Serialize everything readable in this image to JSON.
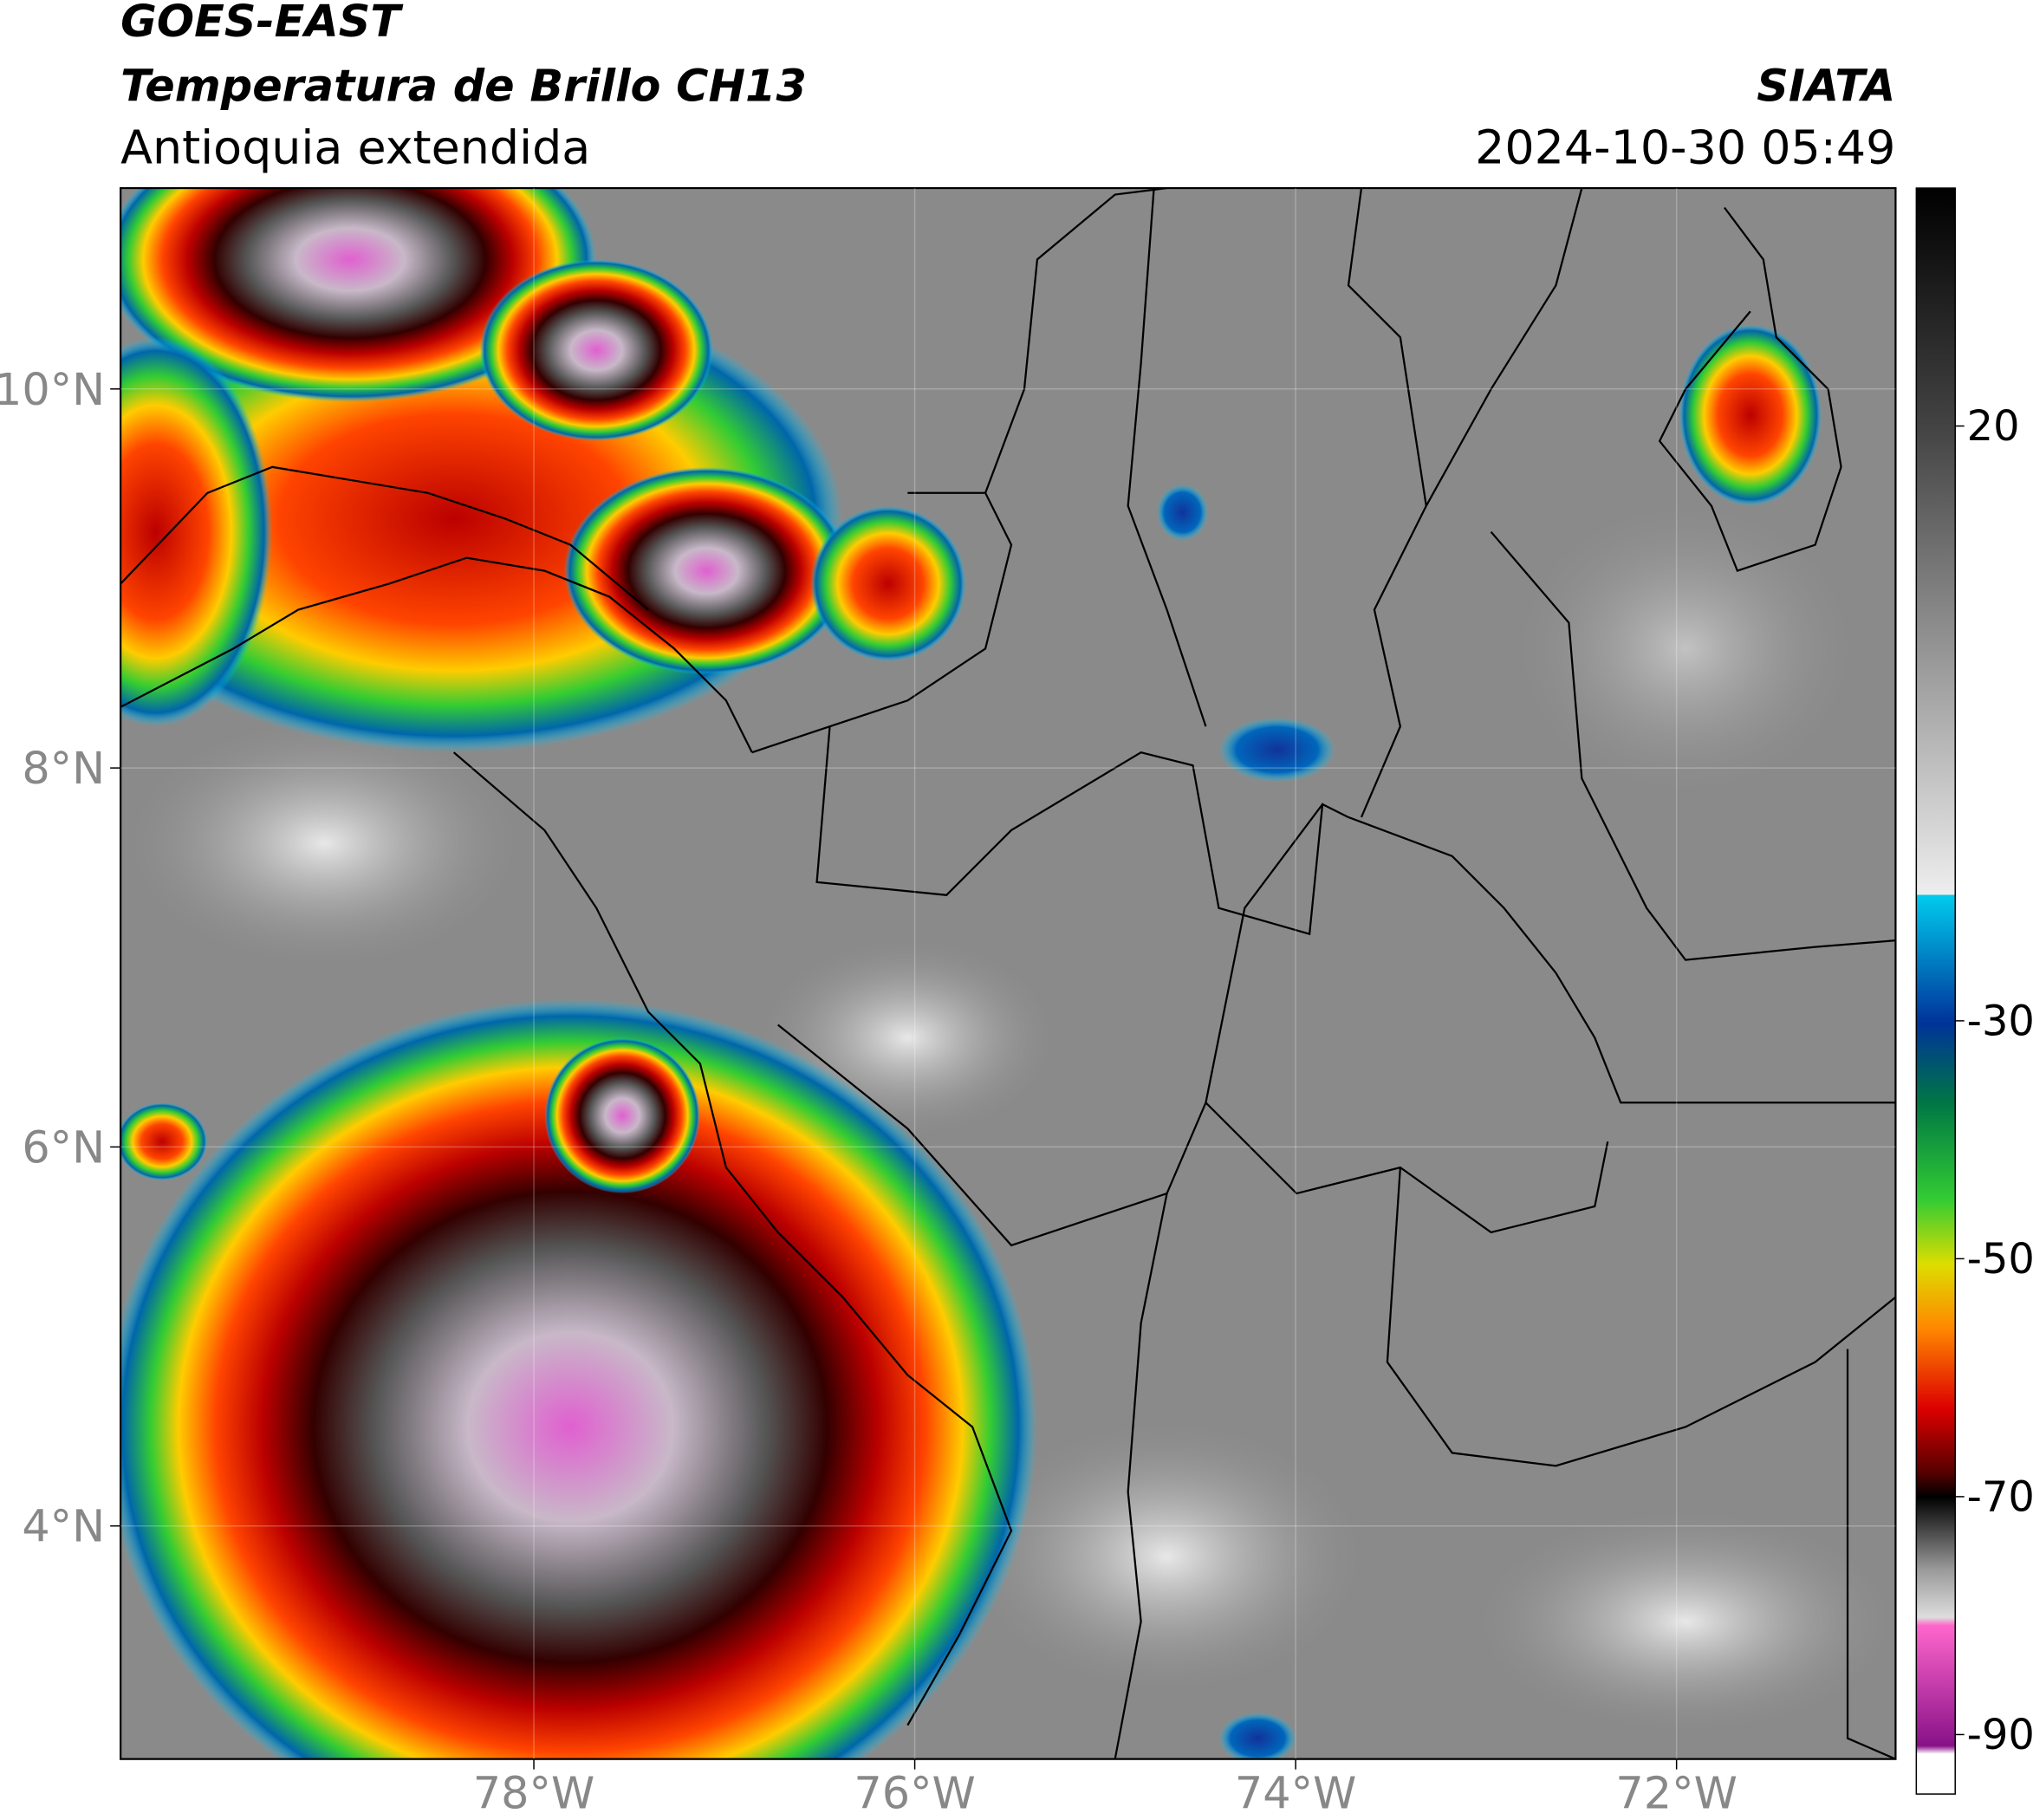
{
  "header": {
    "line1": "GOES-EAST",
    "line2": "Temperatura de Brillo CH13",
    "line3": "Antioquia extendida",
    "source": "SIATA",
    "datetime": "2024-10-30 05:49"
  },
  "map": {
    "xlim": [
      -80.17,
      -70.85
    ],
    "ylim": [
      2.77,
      11.06
    ],
    "xticks": [
      {
        "value": -78,
        "label": "78°W"
      },
      {
        "value": -76,
        "label": "76°W"
      },
      {
        "value": -74,
        "label": "74°W"
      },
      {
        "value": -72,
        "label": "72°W"
      }
    ],
    "yticks": [
      {
        "value": 4,
        "label": "4°N"
      },
      {
        "value": 6,
        "label": "6°N"
      },
      {
        "value": 8,
        "label": "8°N"
      },
      {
        "value": 10,
        "label": "10°N"
      }
    ],
    "grid": true
  },
  "colorbar": {
    "lim": [
      -95,
      40
    ],
    "ticks": [
      20,
      -30,
      -50,
      -70,
      -90
    ]
  }
}
